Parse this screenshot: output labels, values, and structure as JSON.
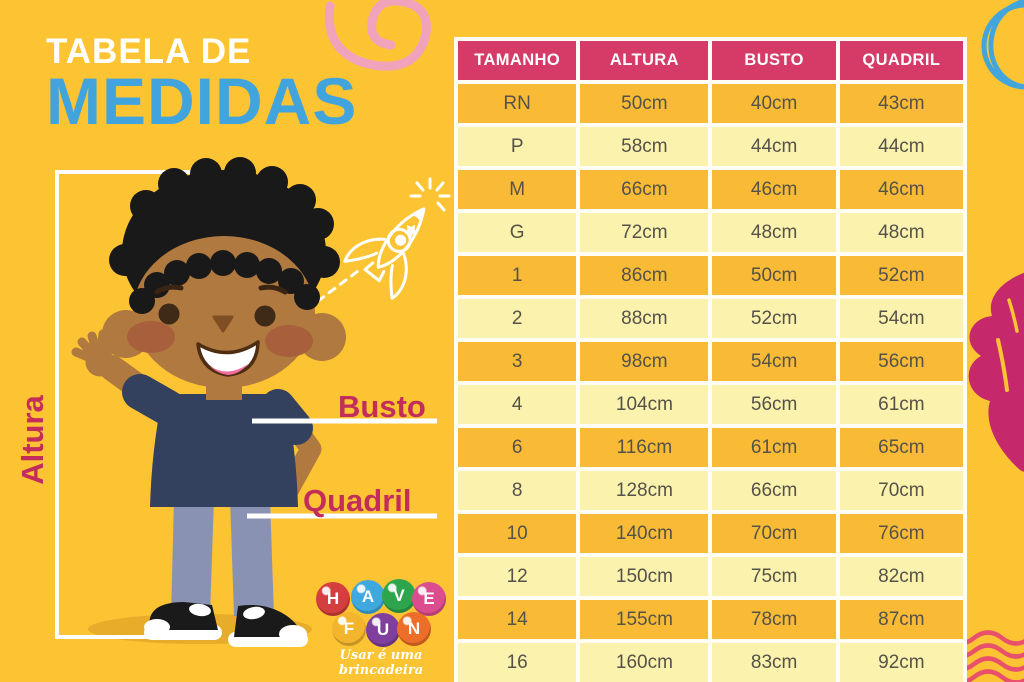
{
  "title": {
    "line1": "TABELA DE",
    "line2": "MEDIDAS"
  },
  "measure_labels": {
    "altura": "Altura",
    "busto": "Busto",
    "quadril": "Quadril"
  },
  "chart_data": {
    "type": "table",
    "title": "TABELA DE MEDIDAS",
    "columns": [
      "TAMANHO",
      "ALTURA",
      "BUSTO",
      "QUADRIL"
    ],
    "rows": [
      [
        "RN",
        "50cm",
        "40cm",
        "43cm"
      ],
      [
        "P",
        "58cm",
        "44cm",
        "44cm"
      ],
      [
        "M",
        "66cm",
        "46cm",
        "46cm"
      ],
      [
        "G",
        "72cm",
        "48cm",
        "48cm"
      ],
      [
        "1",
        "86cm",
        "50cm",
        "52cm"
      ],
      [
        "2",
        "88cm",
        "52cm",
        "54cm"
      ],
      [
        "3",
        "98cm",
        "54cm",
        "56cm"
      ],
      [
        "4",
        "104cm",
        "56cm",
        "61cm"
      ],
      [
        "6",
        "116cm",
        "61cm",
        "65cm"
      ],
      [
        "8",
        "128cm",
        "66cm",
        "70cm"
      ],
      [
        "10",
        "140cm",
        "70cm",
        "76cm"
      ],
      [
        "12",
        "150cm",
        "75cm",
        "82cm"
      ],
      [
        "14",
        "155cm",
        "78cm",
        "87cm"
      ],
      [
        "16",
        "160cm",
        "83cm",
        "92cm"
      ]
    ]
  },
  "logo": {
    "balls": [
      {
        "letter": "H",
        "color": "#D53E3E"
      },
      {
        "letter": "A",
        "color": "#3FA8DF"
      },
      {
        "letter": "V",
        "color": "#2EA44D"
      },
      {
        "letter": "E",
        "color": "#DB4D8E"
      },
      {
        "letter": "F",
        "color": "#F2B52D"
      },
      {
        "letter": "U",
        "color": "#7E3F9D"
      },
      {
        "letter": "N",
        "color": "#EC6E28"
      }
    ],
    "tagline": "Usar é uma brincadeira"
  },
  "palette": {
    "background": "#FCC433",
    "title_blue": "#42A4DD",
    "header_pink": "#D63A67",
    "row_orange": "#F9BB35",
    "row_pale": "#FBF2AD",
    "cell_text": "#55524A",
    "label_crimson": "#C22D5B",
    "spiral_pink": "#F2A3BC",
    "circle_doodle_blue": "#42A5DC",
    "brush_magenta": "#C6296B",
    "wave_red": "#E8506B"
  }
}
